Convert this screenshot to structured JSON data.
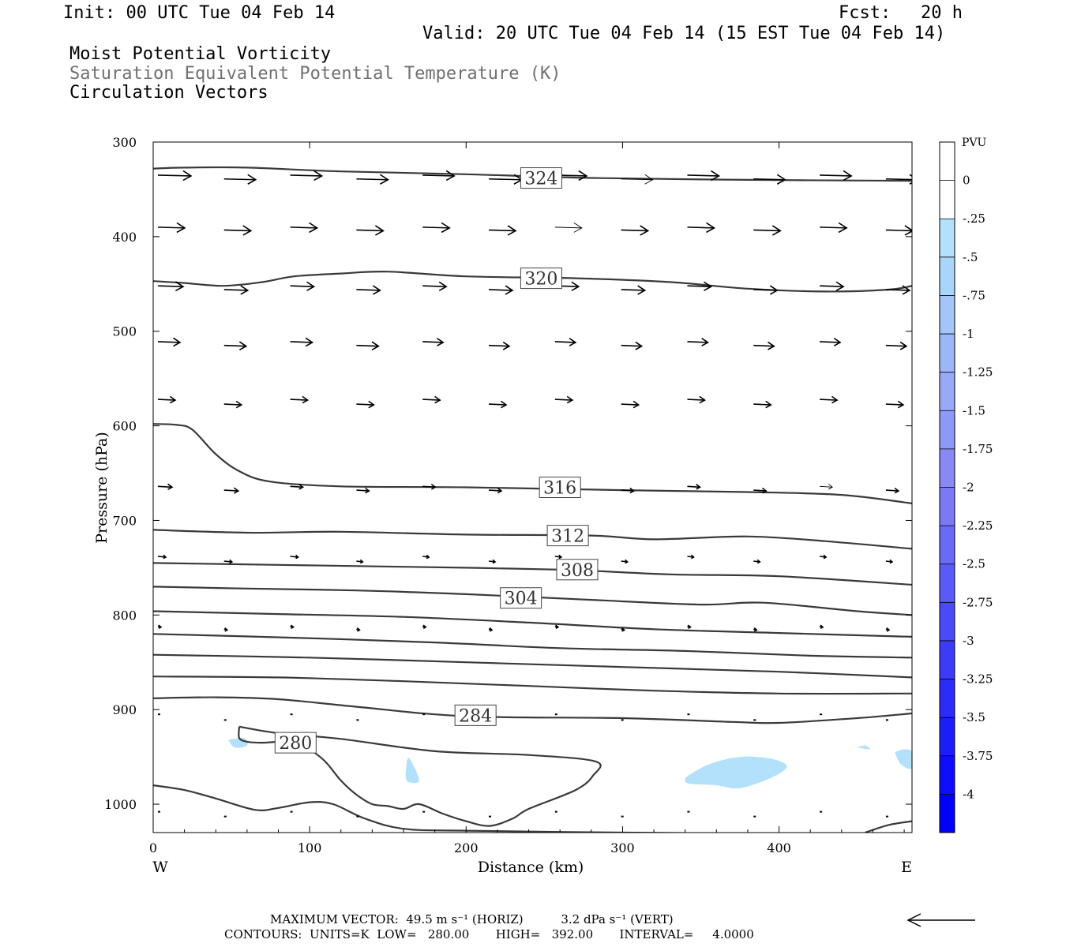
{
  "header": {
    "init": "Init: 00 UTC Tue 04 Feb 14",
    "fcst_label": "Fcst:",
    "fcst_value": "20 h",
    "valid": "Valid: 20 UTC Tue 04 Feb 14 (15 EST Tue 04 Feb 14)",
    "field1": "Moist Potential Vorticity",
    "field2": "Saturation Equivalent Potential Temperature (K)",
    "field3": "Circulation Vectors"
  },
  "colors": {
    "contour": "#3a3a3a",
    "field2_text": "#707070",
    "pv_fill": "#b3e0fb"
  },
  "chart_data": {
    "type": "cross-section",
    "xlabel": "Distance (km)",
    "ylabel": "Pressure (hPa)",
    "x_range": [
      0,
      485
    ],
    "y_range": [
      1030,
      300
    ],
    "x_ticks": [
      0,
      100,
      200,
      300,
      400
    ],
    "y_ticks": [
      300,
      400,
      500,
      600,
      700,
      800,
      900,
      1000
    ],
    "west_label": "W",
    "east_label": "E",
    "contour_labels": [
      {
        "text": "324",
        "x": 248,
        "p": 338
      },
      {
        "text": "320",
        "x": 248,
        "p": 444
      },
      {
        "text": "316",
        "x": 260,
        "p": 665
      },
      {
        "text": "312",
        "x": 265,
        "p": 716
      },
      {
        "text": "308",
        "x": 271,
        "p": 752
      },
      {
        "text": "304",
        "x": 235,
        "p": 782
      },
      {
        "text": "284",
        "x": 206,
        "p": 906
      },
      {
        "text": "280",
        "x": 91,
        "p": 935
      }
    ],
    "contours": [
      {
        "pts": [
          [
            0,
            328
          ],
          [
            20,
            327
          ],
          [
            60,
            327
          ],
          [
            120,
            331
          ],
          [
            200,
            334
          ],
          [
            280,
            338
          ],
          [
            380,
            340
          ],
          [
            485,
            341
          ]
        ]
      },
      {
        "pts": [
          [
            0,
            447
          ],
          [
            20,
            449
          ],
          [
            45,
            452
          ],
          [
            70,
            448
          ],
          [
            90,
            442
          ],
          [
            120,
            439
          ],
          [
            150,
            437
          ],
          [
            200,
            442
          ],
          [
            270,
            444
          ],
          [
            330,
            448
          ],
          [
            380,
            455
          ],
          [
            430,
            458
          ],
          [
            470,
            456
          ],
          [
            485,
            452
          ]
        ]
      },
      {
        "pts": [
          [
            0,
            598
          ],
          [
            15,
            599
          ],
          [
            25,
            604
          ],
          [
            40,
            630
          ],
          [
            55,
            648
          ],
          [
            75,
            659
          ],
          [
            120,
            664
          ],
          [
            200,
            665
          ],
          [
            300,
            668
          ],
          [
            380,
            670
          ],
          [
            440,
            673
          ],
          [
            485,
            682
          ]
        ]
      },
      {
        "pts": [
          [
            0,
            710
          ],
          [
            60,
            713
          ],
          [
            120,
            712
          ],
          [
            200,
            715
          ],
          [
            280,
            716
          ],
          [
            320,
            720
          ],
          [
            380,
            717
          ],
          [
            430,
            722
          ],
          [
            485,
            730
          ]
        ]
      },
      {
        "pts": [
          [
            0,
            745
          ],
          [
            80,
            747
          ],
          [
            160,
            749
          ],
          [
            260,
            752
          ],
          [
            330,
            757
          ],
          [
            400,
            759
          ],
          [
            485,
            768
          ]
        ]
      },
      {
        "pts": [
          [
            0,
            770
          ],
          [
            60,
            772
          ],
          [
            130,
            774
          ],
          [
            200,
            778
          ],
          [
            280,
            784
          ],
          [
            350,
            789
          ],
          [
            390,
            787
          ],
          [
            450,
            796
          ],
          [
            485,
            800
          ]
        ]
      },
      {
        "pts": [
          [
            0,
            796
          ],
          [
            80,
            799
          ],
          [
            160,
            802
          ],
          [
            240,
            808
          ],
          [
            320,
            815
          ],
          [
            400,
            819
          ],
          [
            485,
            823
          ]
        ]
      },
      {
        "pts": [
          [
            0,
            820
          ],
          [
            90,
            824
          ],
          [
            180,
            829
          ],
          [
            260,
            835
          ],
          [
            340,
            838
          ],
          [
            420,
            843
          ],
          [
            485,
            845
          ]
        ]
      },
      {
        "pts": [
          [
            0,
            842
          ],
          [
            100,
            845
          ],
          [
            200,
            850
          ],
          [
            300,
            855
          ],
          [
            400,
            860
          ],
          [
            485,
            866
          ]
        ]
      },
      {
        "pts": [
          [
            0,
            865
          ],
          [
            80,
            866
          ],
          [
            160,
            870
          ],
          [
            240,
            875
          ],
          [
            320,
            880
          ],
          [
            400,
            883
          ],
          [
            485,
            883
          ]
        ]
      },
      {
        "pts": [
          [
            0,
            888
          ],
          [
            40,
            887
          ],
          [
            80,
            889
          ],
          [
            130,
            897
          ],
          [
            200,
            907
          ],
          [
            300,
            909
          ],
          [
            370,
            913
          ],
          [
            400,
            914
          ],
          [
            450,
            909
          ],
          [
            485,
            904
          ]
        ]
      },
      {
        "pts": [
          [
            55,
            918
          ],
          [
            80,
            925
          ],
          [
            120,
            931
          ],
          [
            180,
            944
          ],
          [
            240,
            948
          ],
          [
            283,
            955
          ],
          [
            281,
            970
          ],
          [
            270,
            985
          ],
          [
            240,
            1005
          ],
          [
            230,
            1015
          ],
          [
            215,
            1023
          ],
          [
            200,
            1018
          ],
          [
            185,
            1010
          ],
          [
            170,
            1000
          ],
          [
            160,
            1005
          ],
          [
            150,
            1002
          ],
          [
            140,
            1000
          ],
          [
            130,
            990
          ],
          [
            120,
            975
          ],
          [
            110,
            955
          ],
          [
            100,
            942
          ],
          [
            90,
            934
          ],
          [
            80,
            934
          ],
          [
            70,
            935
          ],
          [
            60,
            934
          ],
          [
            55,
            930
          ],
          [
            55,
            918
          ]
        ]
      },
      {
        "pts": [
          [
            0,
            980
          ],
          [
            20,
            985
          ],
          [
            40,
            994
          ],
          [
            65,
            1006
          ],
          [
            80,
            1004
          ],
          [
            100,
            998
          ],
          [
            115,
            1000
          ],
          [
            135,
            1015
          ],
          [
            160,
            1026
          ],
          [
            200,
            1028
          ],
          [
            300,
            1030
          ],
          [
            400,
            1031
          ],
          [
            485,
            1031
          ]
        ]
      },
      {
        "pts": [
          [
            455,
            1030
          ],
          [
            470,
            1022
          ],
          [
            485,
            1018
          ]
        ]
      }
    ],
    "pv_shading": [
      {
        "pts": [
          [
            48,
            932
          ],
          [
            58,
            930
          ],
          [
            60,
            938
          ],
          [
            52,
            940
          ]
        ]
      },
      {
        "pts": [
          [
            162,
            955
          ],
          [
            164,
            952
          ],
          [
            170,
            975
          ],
          [
            162,
            975
          ]
        ]
      },
      {
        "pts": [
          [
            340,
            972
          ],
          [
            355,
            958
          ],
          [
            375,
            950
          ],
          [
            395,
            952
          ],
          [
            405,
            960
          ],
          [
            395,
            972
          ],
          [
            375,
            983
          ],
          [
            360,
            980
          ],
          [
            342,
            978
          ]
        ]
      },
      {
        "pts": [
          [
            474,
            945
          ],
          [
            480,
            942
          ],
          [
            485,
            945
          ],
          [
            485,
            962
          ],
          [
            478,
            958
          ]
        ]
      },
      {
        "pts": [
          [
            450,
            940
          ],
          [
            455,
            938
          ],
          [
            458,
            942
          ]
        ]
      }
    ],
    "pv_colorbar": {
      "units": "PVU",
      "labels": [
        "0",
        "-.25",
        "-.5",
        "-.75",
        "-1",
        "-1.25",
        "-1.5",
        "-1.75",
        "-2",
        "-2.25",
        "-2.5",
        "-2.75",
        "-3",
        "-3.25",
        "-3.5",
        "-3.75",
        "-4"
      ],
      "colors": [
        "#ffffff",
        "#ffffff",
        "#b3e0fb",
        "#a8d5fa",
        "#a5c5f9",
        "#9cb6f8",
        "#97a9f7",
        "#8d99f6",
        "#8989f6",
        "#7a7af6",
        "#6a6af7",
        "#5a5af8",
        "#4a4af8",
        "#3b3bf9",
        "#2c2cfa",
        "#1d1dfb",
        "#0e0efc",
        "#0000fd"
      ]
    },
    "vector_rows": [
      {
        "p": 335,
        "dp": 4,
        "lens": [
          42,
          40,
          40,
          40,
          40,
          42,
          40,
          40,
          40,
          40,
          40,
          40,
          40
        ],
        "thin": [
          7
        ]
      },
      {
        "p": 390,
        "dp": 3,
        "lens": [
          34,
          34,
          34,
          34,
          34,
          34,
          34,
          34,
          34,
          34,
          34,
          34,
          34
        ],
        "thin": [
          6
        ]
      },
      {
        "p": 452,
        "dp": 4,
        "lens": [
          32,
          30,
          30,
          30,
          30,
          30,
          30,
          30,
          30,
          30,
          30,
          30,
          30
        ],
        "thin": []
      },
      {
        "p": 511,
        "dp": 4,
        "lens": [
          28,
          28,
          28,
          28,
          26,
          26,
          26,
          26,
          26,
          26,
          26,
          26,
          26
        ],
        "thin": []
      },
      {
        "p": 572,
        "dp": 5,
        "lens": [
          22,
          22,
          22,
          22,
          22,
          22,
          22,
          22,
          22,
          22,
          22,
          22,
          22
        ],
        "thin": []
      },
      {
        "p": 664,
        "dp": 4,
        "lens": [
          18,
          18,
          16,
          16,
          16,
          16,
          16,
          16,
          16,
          16,
          16,
          16,
          16
        ],
        "thin": [
          6,
          10
        ]
      },
      {
        "p": 738,
        "dp": 5,
        "lens": [
          10,
          10,
          10,
          8,
          8,
          8,
          8,
          8,
          8,
          8,
          8,
          8,
          8
        ],
        "thin": []
      },
      {
        "p": 812,
        "dp": 3,
        "lens": [
          4,
          4,
          4,
          4,
          4,
          4,
          4,
          4,
          4,
          4,
          4,
          4,
          4
        ],
        "thin": []
      },
      {
        "p": 905,
        "dp": 6,
        "lens": [
          1,
          1,
          1,
          1,
          1,
          1,
          1,
          1,
          1,
          1,
          1,
          1,
          1
        ],
        "thin": []
      },
      {
        "p": 1008,
        "dp": 5,
        "lens": [
          1,
          1,
          1,
          1,
          1,
          1,
          1,
          1,
          1,
          1,
          1,
          1,
          1
        ],
        "thin": []
      }
    ],
    "vector_spacing_km": 42.3,
    "vector_start_km": 3
  },
  "footer": {
    "max_vector_line": "MAXIMUM VECTOR:  49.5 m s⁻¹ (HORIZ)          3.2 dPa s⁻¹ (VERT)",
    "contours_line": "CONTOURS:  UNITS=K  LOW=   280.00       HIGH=   392.00       INTERVAL=     4.0000"
  }
}
